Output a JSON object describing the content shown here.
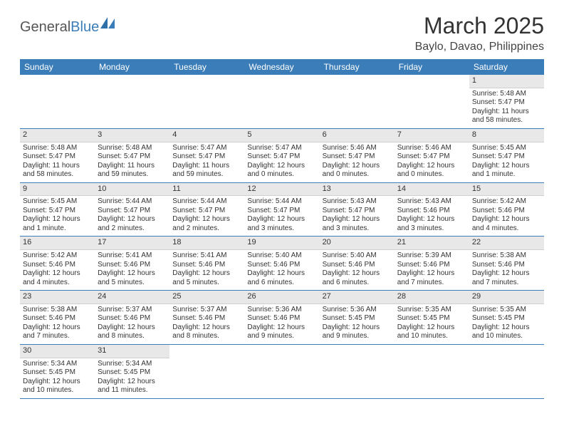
{
  "brand": {
    "part1": "General",
    "part2": "Blue"
  },
  "title": "March 2025",
  "location": "Baylo, Davao, Philippines",
  "colors": {
    "header_bg": "#3b7db8",
    "daynum_bg": "#e8e8e8",
    "week_border": "#3b7db8",
    "text": "#333333",
    "bg": "#ffffff"
  },
  "day_names": [
    "Sunday",
    "Monday",
    "Tuesday",
    "Wednesday",
    "Thursday",
    "Friday",
    "Saturday"
  ],
  "weeks": [
    [
      null,
      null,
      null,
      null,
      null,
      null,
      {
        "n": "1",
        "sr": "Sunrise: 5:48 AM",
        "ss": "Sunset: 5:47 PM",
        "dl": "Daylight: 11 hours and 58 minutes."
      }
    ],
    [
      {
        "n": "2",
        "sr": "Sunrise: 5:48 AM",
        "ss": "Sunset: 5:47 PM",
        "dl": "Daylight: 11 hours and 58 minutes."
      },
      {
        "n": "3",
        "sr": "Sunrise: 5:48 AM",
        "ss": "Sunset: 5:47 PM",
        "dl": "Daylight: 11 hours and 59 minutes."
      },
      {
        "n": "4",
        "sr": "Sunrise: 5:47 AM",
        "ss": "Sunset: 5:47 PM",
        "dl": "Daylight: 11 hours and 59 minutes."
      },
      {
        "n": "5",
        "sr": "Sunrise: 5:47 AM",
        "ss": "Sunset: 5:47 PM",
        "dl": "Daylight: 12 hours and 0 minutes."
      },
      {
        "n": "6",
        "sr": "Sunrise: 5:46 AM",
        "ss": "Sunset: 5:47 PM",
        "dl": "Daylight: 12 hours and 0 minutes."
      },
      {
        "n": "7",
        "sr": "Sunrise: 5:46 AM",
        "ss": "Sunset: 5:47 PM",
        "dl": "Daylight: 12 hours and 0 minutes."
      },
      {
        "n": "8",
        "sr": "Sunrise: 5:45 AM",
        "ss": "Sunset: 5:47 PM",
        "dl": "Daylight: 12 hours and 1 minute."
      }
    ],
    [
      {
        "n": "9",
        "sr": "Sunrise: 5:45 AM",
        "ss": "Sunset: 5:47 PM",
        "dl": "Daylight: 12 hours and 1 minute."
      },
      {
        "n": "10",
        "sr": "Sunrise: 5:44 AM",
        "ss": "Sunset: 5:47 PM",
        "dl": "Daylight: 12 hours and 2 minutes."
      },
      {
        "n": "11",
        "sr": "Sunrise: 5:44 AM",
        "ss": "Sunset: 5:47 PM",
        "dl": "Daylight: 12 hours and 2 minutes."
      },
      {
        "n": "12",
        "sr": "Sunrise: 5:44 AM",
        "ss": "Sunset: 5:47 PM",
        "dl": "Daylight: 12 hours and 3 minutes."
      },
      {
        "n": "13",
        "sr": "Sunrise: 5:43 AM",
        "ss": "Sunset: 5:47 PM",
        "dl": "Daylight: 12 hours and 3 minutes."
      },
      {
        "n": "14",
        "sr": "Sunrise: 5:43 AM",
        "ss": "Sunset: 5:46 PM",
        "dl": "Daylight: 12 hours and 3 minutes."
      },
      {
        "n": "15",
        "sr": "Sunrise: 5:42 AM",
        "ss": "Sunset: 5:46 PM",
        "dl": "Daylight: 12 hours and 4 minutes."
      }
    ],
    [
      {
        "n": "16",
        "sr": "Sunrise: 5:42 AM",
        "ss": "Sunset: 5:46 PM",
        "dl": "Daylight: 12 hours and 4 minutes."
      },
      {
        "n": "17",
        "sr": "Sunrise: 5:41 AM",
        "ss": "Sunset: 5:46 PM",
        "dl": "Daylight: 12 hours and 5 minutes."
      },
      {
        "n": "18",
        "sr": "Sunrise: 5:41 AM",
        "ss": "Sunset: 5:46 PM",
        "dl": "Daylight: 12 hours and 5 minutes."
      },
      {
        "n": "19",
        "sr": "Sunrise: 5:40 AM",
        "ss": "Sunset: 5:46 PM",
        "dl": "Daylight: 12 hours and 6 minutes."
      },
      {
        "n": "20",
        "sr": "Sunrise: 5:40 AM",
        "ss": "Sunset: 5:46 PM",
        "dl": "Daylight: 12 hours and 6 minutes."
      },
      {
        "n": "21",
        "sr": "Sunrise: 5:39 AM",
        "ss": "Sunset: 5:46 PM",
        "dl": "Daylight: 12 hours and 7 minutes."
      },
      {
        "n": "22",
        "sr": "Sunrise: 5:38 AM",
        "ss": "Sunset: 5:46 PM",
        "dl": "Daylight: 12 hours and 7 minutes."
      }
    ],
    [
      {
        "n": "23",
        "sr": "Sunrise: 5:38 AM",
        "ss": "Sunset: 5:46 PM",
        "dl": "Daylight: 12 hours and 7 minutes."
      },
      {
        "n": "24",
        "sr": "Sunrise: 5:37 AM",
        "ss": "Sunset: 5:46 PM",
        "dl": "Daylight: 12 hours and 8 minutes."
      },
      {
        "n": "25",
        "sr": "Sunrise: 5:37 AM",
        "ss": "Sunset: 5:46 PM",
        "dl": "Daylight: 12 hours and 8 minutes."
      },
      {
        "n": "26",
        "sr": "Sunrise: 5:36 AM",
        "ss": "Sunset: 5:46 PM",
        "dl": "Daylight: 12 hours and 9 minutes."
      },
      {
        "n": "27",
        "sr": "Sunrise: 5:36 AM",
        "ss": "Sunset: 5:45 PM",
        "dl": "Daylight: 12 hours and 9 minutes."
      },
      {
        "n": "28",
        "sr": "Sunrise: 5:35 AM",
        "ss": "Sunset: 5:45 PM",
        "dl": "Daylight: 12 hours and 10 minutes."
      },
      {
        "n": "29",
        "sr": "Sunrise: 5:35 AM",
        "ss": "Sunset: 5:45 PM",
        "dl": "Daylight: 12 hours and 10 minutes."
      }
    ],
    [
      {
        "n": "30",
        "sr": "Sunrise: 5:34 AM",
        "ss": "Sunset: 5:45 PM",
        "dl": "Daylight: 12 hours and 10 minutes."
      },
      {
        "n": "31",
        "sr": "Sunrise: 5:34 AM",
        "ss": "Sunset: 5:45 PM",
        "dl": "Daylight: 12 hours and 11 minutes."
      },
      null,
      null,
      null,
      null,
      null
    ]
  ]
}
